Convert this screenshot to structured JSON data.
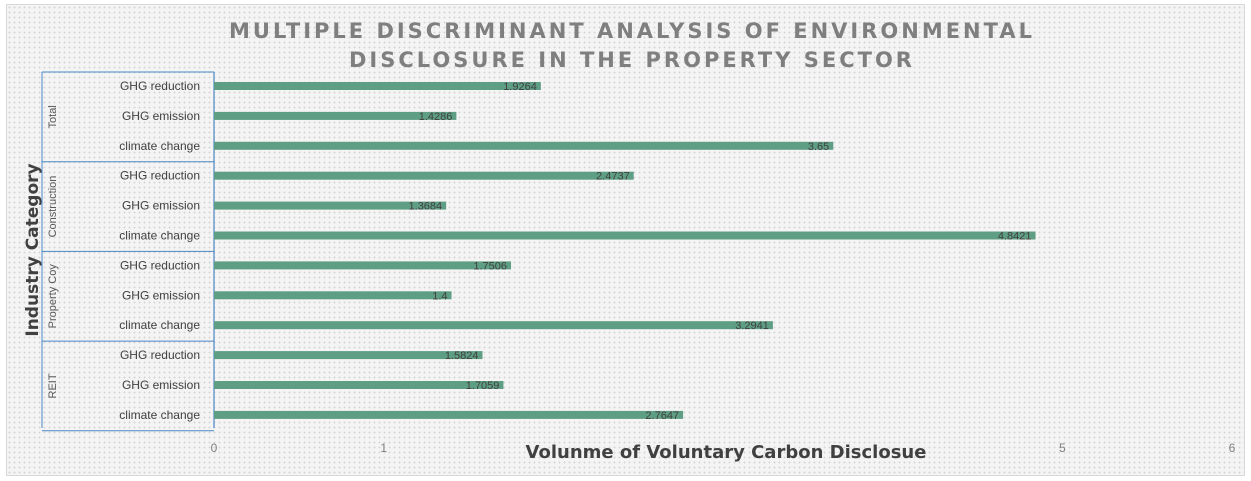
{
  "chart_data": {
    "type": "bar",
    "orientation": "horizontal",
    "title_lines": [
      "MULTIPLE DISCRIMINANT ANALYSIS OF ENVIRONMENTAL",
      "DISCLOSURE IN THE PROPERTY SECTOR"
    ],
    "xlabel": "Volunme of Voluntary Carbon Disclosue",
    "ylabel": "Industry Category",
    "xlim": [
      0,
      6
    ],
    "xticks": [
      0,
      1,
      5,
      6
    ],
    "grid": false,
    "bar_color": "#5e9e84",
    "groups": [
      {
        "name": "Total",
        "categories": [
          "GHG reduction",
          "GHG emission",
          "climate change"
        ],
        "values": [
          1.9264,
          1.4286,
          3.65
        ],
        "labels": [
          "1.9264",
          "1.4286",
          "3.65"
        ]
      },
      {
        "name": "Construction",
        "categories": [
          "GHG reduction",
          "GHG emission",
          "climate change"
        ],
        "values": [
          2.4737,
          1.3684,
          4.8421
        ],
        "labels": [
          "2.4737",
          "1.3684",
          "4.8421"
        ]
      },
      {
        "name": "Property Coy",
        "categories": [
          "GHG reduction",
          "GHG emission",
          "climate change"
        ],
        "values": [
          1.7506,
          1.4,
          3.2941
        ],
        "labels": [
          "1.7506",
          "1.4",
          "3.2941"
        ]
      },
      {
        "name": "REIT",
        "categories": [
          "GHG reduction",
          "GHG emission",
          "climate change"
        ],
        "values": [
          1.5824,
          1.7059,
          2.7647
        ],
        "labels": [
          "1.5824",
          "1.7059",
          "2.7647"
        ]
      }
    ]
  }
}
